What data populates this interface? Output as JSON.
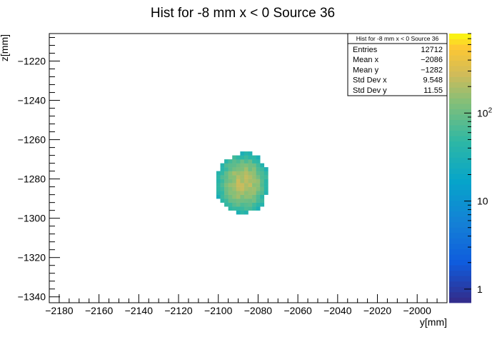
{
  "chart_data": {
    "type": "heatmap",
    "title": "Hist for -8 mm x < 0 Source 36",
    "xlabel": "y[mm]",
    "ylabel": "z[mm]",
    "xlim": [
      -2185,
      -1985
    ],
    "ylim": [
      -1343,
      -1206
    ],
    "x_ticks": [
      -2180,
      -2160,
      -2140,
      -2120,
      -2100,
      -2080,
      -2060,
      -2040,
      -2020,
      -2000
    ],
    "y_ticks": [
      -1220,
      -1240,
      -1260,
      -1280,
      -1300,
      -1320,
      -1340
    ],
    "colorbar": {
      "scale": "log",
      "min": 0.7,
      "max": 800,
      "tick_labels": [
        {
          "value": 1,
          "text": "1"
        },
        {
          "value": 10,
          "text": "10"
        },
        {
          "value": 100,
          "text": "10",
          "sup": "2"
        }
      ]
    },
    "blob": {
      "center_x": -2087.5,
      "center_z": -1282,
      "std_x": 9.548,
      "std_z": 11.55,
      "peak": 230,
      "cell_size": 2,
      "extent_x": [
        -2115,
        -2060
      ],
      "extent_z": [
        -1312,
        -1252
      ]
    },
    "stats": {
      "title": "Hist for -8 mm x < 0 Source 36",
      "rows": [
        {
          "label": "Entries",
          "value": "12712"
        },
        {
          "label": "Mean x",
          "value": "−2086"
        },
        {
          "label": "Mean y",
          "value": "−1282"
        },
        {
          "label": "Std Dev x",
          "value": "9.548"
        },
        {
          "label": "Std Dev y",
          "value": "11.55"
        }
      ]
    }
  }
}
